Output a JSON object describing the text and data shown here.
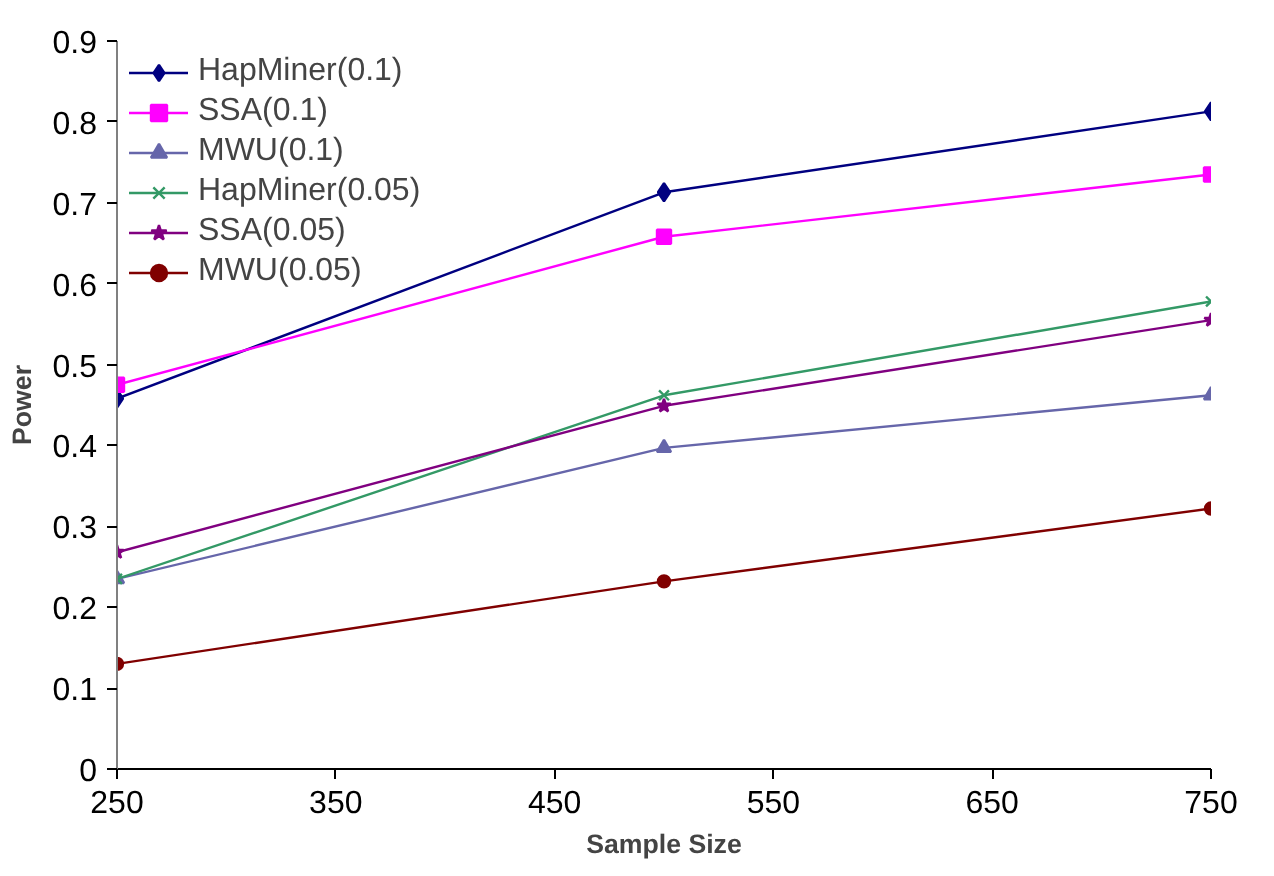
{
  "chart_data": {
    "type": "line",
    "xlabel": "Sample Size",
    "ylabel": "Power",
    "x": [
      250,
      500,
      750
    ],
    "xlim": [
      250,
      750
    ],
    "xticks": [
      250,
      350,
      450,
      550,
      650,
      750
    ],
    "ylim": [
      0,
      0.9
    ],
    "yticks": [
      0,
      0.1,
      0.2,
      0.3,
      0.4,
      0.5,
      0.6,
      0.7,
      0.8,
      0.9
    ],
    "grid": false,
    "legend": "top left",
    "series": [
      {
        "name": "HapMiner(0.1)",
        "color": "#000080",
        "marker": "diamond",
        "values": [
          0.458,
          0.713,
          0.813
        ]
      },
      {
        "name": "SSA(0.1)",
        "color": "#ff00ff",
        "marker": "square",
        "values": [
          0.475,
          0.658,
          0.735
        ]
      },
      {
        "name": "MWU(0.1)",
        "color": "#6666aa",
        "marker": "triangle",
        "values": [
          0.235,
          0.397,
          0.462
        ]
      },
      {
        "name": "HapMiner(0.05)",
        "color": "#339966",
        "marker": "cross",
        "values": [
          0.235,
          0.462,
          0.578
        ]
      },
      {
        "name": "SSA(0.05)",
        "color": "#800080",
        "marker": "star",
        "values": [
          0.268,
          0.449,
          0.555
        ]
      },
      {
        "name": "MWU(0.05)",
        "color": "#800000",
        "marker": "circle",
        "values": [
          0.13,
          0.232,
          0.322
        ]
      }
    ]
  }
}
